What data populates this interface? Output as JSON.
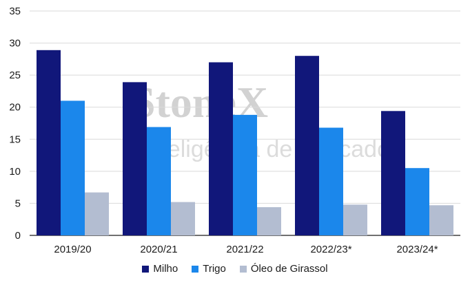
{
  "watermark": {
    "brand": "StoneX",
    "tagline": "Inteligência de Mercado"
  },
  "colors": {
    "milho": "#11177a",
    "trigo": "#1b87eb",
    "oleo": "#b3bdd1",
    "grid": "#d9d9d9",
    "axis": "#1a1a1a"
  },
  "legend": [
    {
      "label": "Milho",
      "color": "#11177a"
    },
    {
      "label": "Trigo",
      "color": "#1b87eb"
    },
    {
      "label": "Óleo de Girassol",
      "color": "#b3bdd1"
    }
  ],
  "chart_data": {
    "type": "bar",
    "categories": [
      "2019/20",
      "2020/21",
      "2021/22",
      "2022/23*",
      "2023/24*"
    ],
    "series": [
      {
        "name": "Milho",
        "values": [
          28.9,
          23.9,
          27.0,
          28.0,
          19.4
        ],
        "color": "#11177a"
      },
      {
        "name": "Trigo",
        "values": [
          21.0,
          16.9,
          18.8,
          16.8,
          10.5
        ],
        "color": "#1b87eb"
      },
      {
        "name": "Óleo de Girassol",
        "values": [
          6.7,
          5.2,
          4.4,
          4.8,
          4.7
        ],
        "color": "#b3bdd1"
      }
    ],
    "yticks": [
      "0",
      "5",
      "10",
      "15",
      "20",
      "25",
      "30",
      "35"
    ],
    "ylim": [
      0,
      35
    ],
    "grid": true,
    "legend_position": "bottom"
  }
}
